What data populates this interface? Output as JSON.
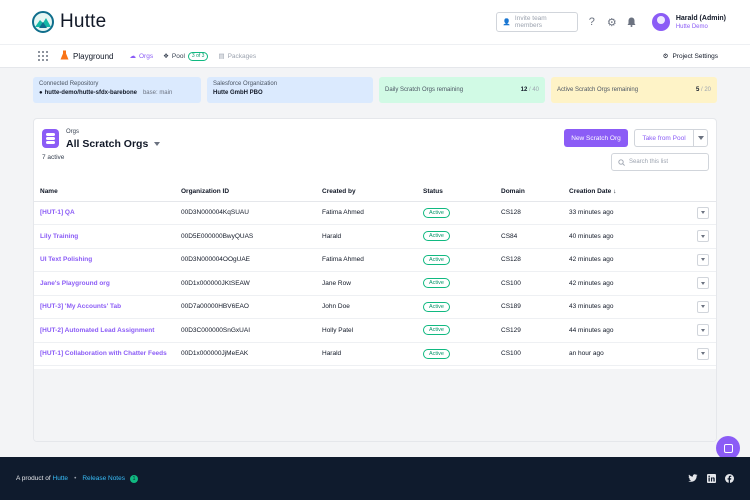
{
  "app": {
    "name": "Hutte"
  },
  "header": {
    "invite_placeholder": "Invite team members",
    "user_name": "Harald (Admin)",
    "user_org": "Hutte Demo"
  },
  "subnav": {
    "project": "Playground",
    "tabs": [
      {
        "label": "Orgs",
        "active": true
      },
      {
        "label": "Pool",
        "badge": "3 of 3"
      },
      {
        "label": "Packages"
      }
    ],
    "project_settings": "Project Settings"
  },
  "cards": {
    "repo_label": "Connected Repository",
    "repo_value": "hutte-demo/hutte-sfdx-barebone",
    "repo_branch": "base: main",
    "sf_label": "Salesforce Organization",
    "sf_value": "Hutte GmbH PBO",
    "daily_label": "Daily Scratch Orgs remaining",
    "daily_used": "12",
    "daily_total": "/ 40",
    "active_label": "Active Scratch Orgs remaining",
    "active_used": "5",
    "active_total": "/ 20"
  },
  "panel": {
    "eyebrow": "Orgs",
    "title": "All Scratch Orgs",
    "count": "7 active",
    "new_button": "New Scratch Org",
    "pool_button": "Take from Pool",
    "search_placeholder": "Search this list"
  },
  "table": {
    "columns": [
      "Name",
      "Organization ID",
      "Created by",
      "Status",
      "Domain",
      "Creation Date ↓"
    ],
    "rows": [
      {
        "name": "[HUT-1] QA",
        "org_id": "00D3N000004KqSUAU",
        "created_by": "Fatima Ahmed",
        "status": "Active",
        "domain": "CS128",
        "date": "33 minutes ago"
      },
      {
        "name": "Lily Training",
        "org_id": "00D5E000000BwyQUAS",
        "created_by": "Harald",
        "status": "Active",
        "domain": "CS84",
        "date": "40 minutes ago"
      },
      {
        "name": "UI Text Polishing",
        "org_id": "00D3N000004OOgUAE",
        "created_by": "Fatima Ahmed",
        "status": "Active",
        "domain": "CS128",
        "date": "42 minutes ago"
      },
      {
        "name": "Jane's Playground org",
        "org_id": "00D1x000000JKtSEAW",
        "created_by": "Jane Row",
        "status": "Active",
        "domain": "CS100",
        "date": "42 minutes ago"
      },
      {
        "name": "[HUT-3] 'My Accounts' Tab",
        "org_id": "00D7a00000HBV6EAO",
        "created_by": "John Doe",
        "status": "Active",
        "domain": "CS189",
        "date": "43 minutes ago"
      },
      {
        "name": "[HUT-2] Automated Lead Assignment",
        "org_id": "00D3C000000SnGxUAI",
        "created_by": "Holly Patel",
        "status": "Active",
        "domain": "CS129",
        "date": "44 minutes ago"
      },
      {
        "name": "[HUT-1] Collaboration with Chatter Feeds",
        "org_id": "00D1x000000JjMeEAK",
        "created_by": "Harald",
        "status": "Active",
        "domain": "CS100",
        "date": "an hour ago"
      }
    ]
  },
  "footer": {
    "product_of": "A product of",
    "brand": "Hutte",
    "release_notes": "Release Notes",
    "badge": "1"
  },
  "icons": {
    "logo": "mountain-logo-icon",
    "help": "question-icon",
    "settings": "gear-icon",
    "notifications": "bell-icon",
    "social": [
      "twitter-icon",
      "linkedin-icon",
      "facebook-icon"
    ]
  },
  "colors": {
    "accent": "#8b5cf6",
    "active": "#10b981",
    "footer_bg": "#0f1b2d"
  }
}
